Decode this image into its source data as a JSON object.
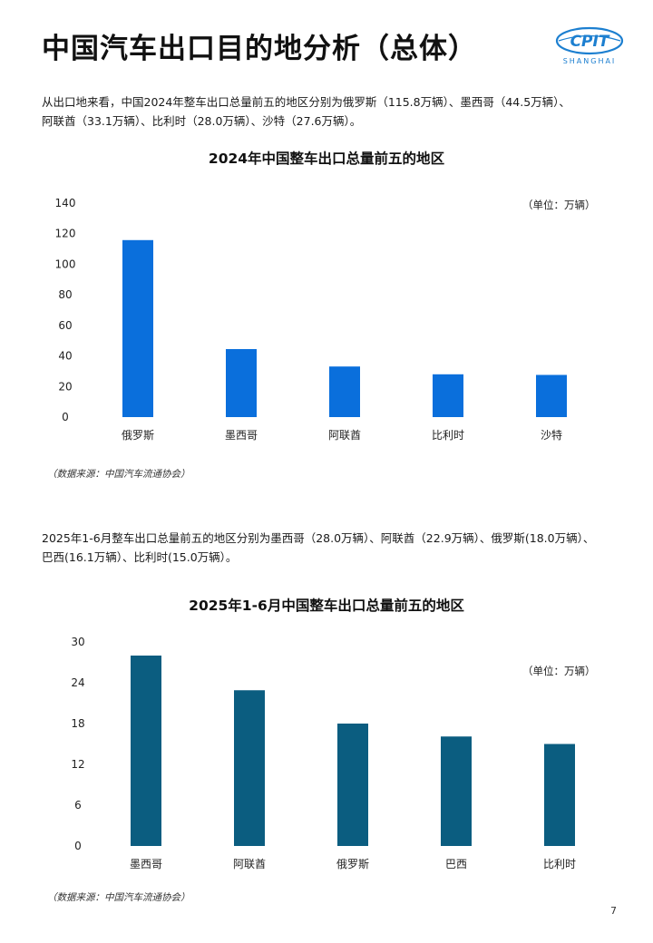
{
  "header": {
    "title": "中国汽车出口目的地分析（总体）",
    "logo_text": "CPIT",
    "logo_subtext": "SHANGHAI"
  },
  "section1": {
    "paragraph_line1": "从出口地来看，中国2024年整车出口总量前五的地区分别为俄罗斯（115.8万辆）、墨西哥（44.5万辆）、",
    "paragraph_line2": "阿联酋（33.1万辆）、比利时（28.0万辆）、沙特（27.6万辆）。"
  },
  "section2": {
    "paragraph_line1": "2025年1-6月整车出口总量前五的地区分别为墨西哥（28.0万辆）、阿联酋（22.9万辆）、俄罗斯(18.0万辆）、",
    "paragraph_line2": "巴西(16.1万辆）、比利时(15.0万辆）。"
  },
  "chart_data": [
    {
      "type": "bar",
      "title": "2024年中国整车出口总量前五的地区",
      "unit": "（单位：万辆）",
      "categories": [
        "俄罗斯",
        "墨西哥",
        "阿联酋",
        "比利时",
        "沙特"
      ],
      "values": [
        115.8,
        44.5,
        33.1,
        28.0,
        27.6
      ],
      "yticks": [
        0,
        20,
        40,
        60,
        80,
        100,
        120,
        140
      ],
      "ylim": [
        0,
        140
      ],
      "color": "#0a6fdc",
      "source": "（数据来源：中国汽车流通协会）"
    },
    {
      "type": "bar",
      "title": "2025年1-6月中国整车出口总量前五的地区",
      "unit": "（单位：万辆）",
      "categories": [
        "墨西哥",
        "阿联酋",
        "俄罗斯",
        "巴西",
        "比利时"
      ],
      "values": [
        28.0,
        22.9,
        18.0,
        16.1,
        15.0
      ],
      "yticks": [
        0,
        6,
        12,
        18,
        24,
        30
      ],
      "ylim": [
        0,
        30
      ],
      "color": "#0b5d80",
      "source": "（数据来源：中国汽车流通协会）"
    }
  ],
  "footer": {
    "page_number": "7"
  }
}
